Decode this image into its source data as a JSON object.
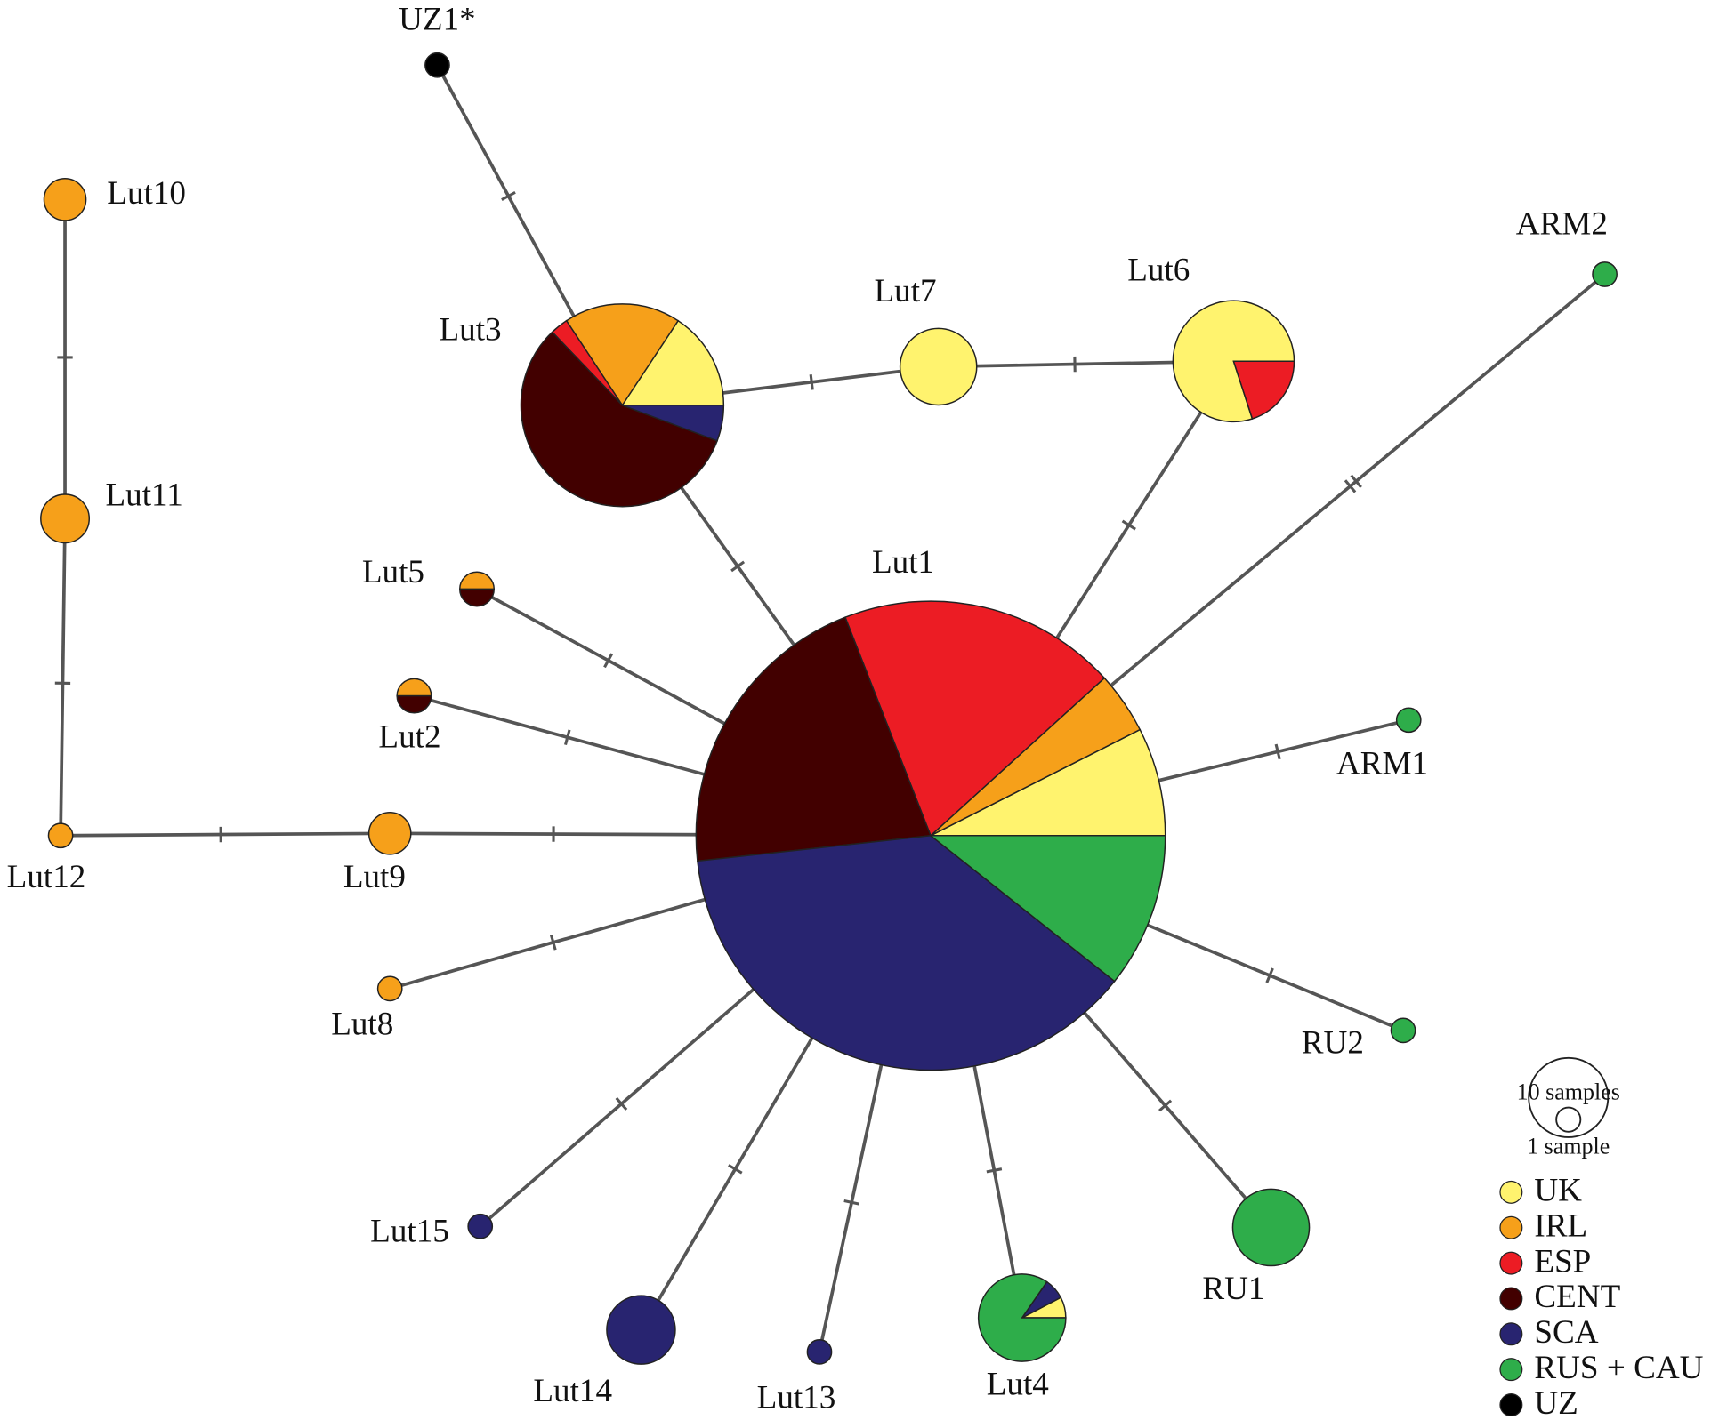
{
  "legend": {
    "size_labels": [
      "10 samples",
      "1 sample"
    ],
    "items": [
      {
        "name": "UK",
        "color": "#fff36e"
      },
      {
        "name": "IRL",
        "color": "#f6a01a"
      },
      {
        "name": "ESP",
        "color": "#ec1c24"
      },
      {
        "name": "CENT",
        "color": "#420000"
      },
      {
        "name": "SCA",
        "color": "#282470"
      },
      {
        "name": "RUS + CAU",
        "color": "#2ead4a"
      },
      {
        "name": "UZ",
        "color": "#000000"
      }
    ]
  },
  "nodes": [
    {
      "label": "UZ1*",
      "slices": [
        {
          "group": 6,
          "n": 1
        }
      ]
    },
    {
      "label": "Lut10",
      "slices": [
        {
          "group": 1,
          "n": 3
        }
      ]
    },
    {
      "label": "Lut11",
      "slices": [
        {
          "group": 1,
          "n": 4
        }
      ]
    },
    {
      "label": "Lut12",
      "slices": [
        {
          "group": 1,
          "n": 1
        }
      ]
    },
    {
      "label": "Lut9",
      "slices": [
        {
          "group": 1,
          "n": 3
        }
      ]
    },
    {
      "label": "Lut3",
      "slices": [
        {
          "group": 0,
          "n": 11
        },
        {
          "group": 1,
          "n": 13
        },
        {
          "group": 2,
          "n": 2
        },
        {
          "group": 3,
          "n": 40
        },
        {
          "group": 4,
          "n": 4
        }
      ]
    },
    {
      "label": "Lut7",
      "slices": [
        {
          "group": 0,
          "n": 10
        }
      ]
    },
    {
      "label": "Lut6",
      "slices": [
        {
          "group": 0,
          "n": 20
        },
        {
          "group": 2,
          "n": 5
        }
      ]
    },
    {
      "label": "ARM2",
      "slices": [
        {
          "group": 5,
          "n": 1
        }
      ]
    },
    {
      "label": "Lut1",
      "slices": [
        {
          "group": 0,
          "n": 28
        },
        {
          "group": 1,
          "n": 16
        },
        {
          "group": 2,
          "n": 72
        },
        {
          "group": 3,
          "n": 78
        },
        {
          "group": 4,
          "n": 141
        },
        {
          "group": 5,
          "n": 40
        }
      ]
    },
    {
      "label": "Lut5",
      "slices": [
        {
          "group": 1,
          "n": 1
        },
        {
          "group": 3,
          "n": 1
        }
      ]
    },
    {
      "label": "Lut2",
      "slices": [
        {
          "group": 1,
          "n": 1
        },
        {
          "group": 3,
          "n": 1
        }
      ]
    },
    {
      "label": "ARM1",
      "slices": [
        {
          "group": 5,
          "n": 1
        }
      ]
    },
    {
      "label": "Lut8",
      "slices": [
        {
          "group": 1,
          "n": 1
        }
      ]
    },
    {
      "label": "RU2",
      "slices": [
        {
          "group": 5,
          "n": 1
        }
      ]
    },
    {
      "label": "Lut15",
      "slices": [
        {
          "group": 4,
          "n": 1
        }
      ]
    },
    {
      "label": "Lut14",
      "slices": [
        {
          "group": 4,
          "n": 8
        }
      ]
    },
    {
      "label": "Lut13",
      "slices": [
        {
          "group": 4,
          "n": 1
        }
      ]
    },
    {
      "label": "Lut4",
      "slices": [
        {
          "group": 0,
          "n": 1
        },
        {
          "group": 4,
          "n": 1
        },
        {
          "group": 5,
          "n": 11
        }
      ]
    },
    {
      "label": "RU1",
      "slices": [
        {
          "group": 5,
          "n": 10
        }
      ]
    }
  ],
  "edges": [
    {
      "nodes": [
        0,
        5
      ],
      "steps": 1
    },
    {
      "nodes": [
        1,
        2
      ],
      "steps": 1
    },
    {
      "nodes": [
        2,
        3
      ],
      "steps": 1
    },
    {
      "nodes": [
        3,
        4
      ],
      "steps": 1
    },
    {
      "nodes": [
        4,
        9
      ],
      "steps": 1
    },
    {
      "nodes": [
        5,
        6
      ],
      "steps": 1
    },
    {
      "nodes": [
        6,
        7
      ],
      "steps": 1
    },
    {
      "nodes": [
        5,
        9
      ],
      "steps": 1
    },
    {
      "nodes": [
        7,
        9
      ],
      "steps": 1
    },
    {
      "nodes": [
        8,
        9
      ],
      "steps": 2
    },
    {
      "nodes": [
        10,
        9
      ],
      "steps": 1
    },
    {
      "nodes": [
        11,
        9
      ],
      "steps": 1
    },
    {
      "nodes": [
        12,
        9
      ],
      "steps": 1
    },
    {
      "nodes": [
        13,
        9
      ],
      "steps": 1
    },
    {
      "nodes": [
        14,
        9
      ],
      "steps": 1
    },
    {
      "nodes": [
        15,
        9
      ],
      "steps": 1
    },
    {
      "nodes": [
        16,
        9
      ],
      "steps": 1
    },
    {
      "nodes": [
        17,
        9
      ],
      "steps": 1
    },
    {
      "nodes": [
        18,
        9
      ],
      "steps": 1
    },
    {
      "nodes": [
        19,
        9
      ],
      "steps": 1
    }
  ]
}
